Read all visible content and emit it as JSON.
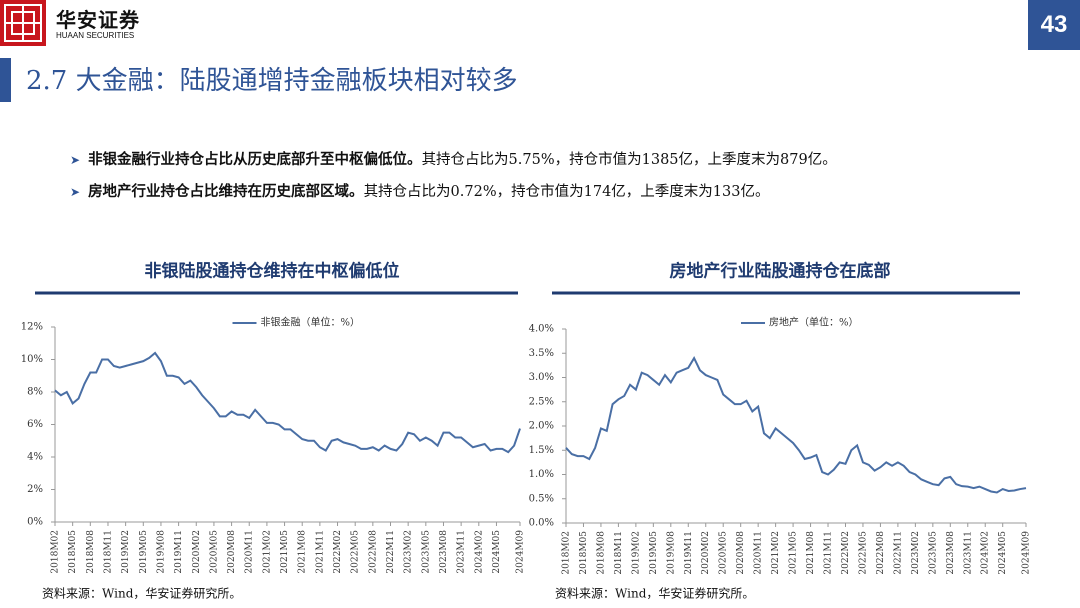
{
  "header": {
    "logo_cn": "华安证券",
    "logo_en": "HUAAN SECURITIES",
    "page_number": "43",
    "title": "2.7 大金融：陆股通增持金融板块相对较多"
  },
  "bullets": [
    {
      "bold": "非银金融行业持仓占比从历史底部升至中枢偏低位。",
      "text": "其持仓占比为5.75%，持仓市值为1385亿，上季度末为879亿。"
    },
    {
      "bold": "房地产行业持仓占比维持在历史底部区域。",
      "text": "其持仓占比为0.72%，持仓市值为174亿，上季度末为133亿。"
    }
  ],
  "chart_data": [
    {
      "type": "line",
      "title": "非银陆股通持仓维持在中枢偏低位",
      "source": "资料来源：Wind，华安证券研究所。",
      "categories": [
        "2018M02",
        null,
        null,
        "2018M05",
        null,
        null,
        "2018M08",
        null,
        null,
        "2018M11",
        null,
        null,
        "2019M02",
        null,
        null,
        "2019M05",
        null,
        null,
        "2019M08",
        null,
        null,
        "2019M11",
        null,
        null,
        "2020M02",
        null,
        null,
        "2020M05",
        null,
        null,
        "2020M08",
        null,
        null,
        "2020M11",
        null,
        null,
        "2021M02",
        null,
        null,
        "2021M05",
        null,
        null,
        "2021M08",
        null,
        null,
        "2021M11",
        null,
        null,
        "2022M02",
        null,
        null,
        "2022M05",
        null,
        null,
        "2022M08",
        null,
        null,
        "2022M11",
        null,
        null,
        "2023M02",
        null,
        null,
        "2023M05",
        null,
        null,
        "2023M08",
        null,
        null,
        "2023M11",
        null,
        null,
        "2024M02",
        null,
        null,
        "2024M05",
        null,
        null,
        null,
        "2024M09"
      ],
      "series": [
        {
          "name": "非银金融（单位：%）",
          "color": "#4a6fa5",
          "values": [
            8.1,
            7.8,
            8.0,
            7.3,
            7.6,
            8.5,
            9.2,
            9.2,
            10.0,
            10.0,
            9.6,
            9.5,
            9.6,
            9.7,
            9.8,
            9.9,
            10.1,
            10.4,
            9.9,
            9.0,
            9.0,
            8.9,
            8.5,
            8.7,
            8.3,
            7.8,
            7.4,
            7.0,
            6.5,
            6.5,
            6.8,
            6.6,
            6.6,
            6.4,
            6.9,
            6.5,
            6.1,
            6.1,
            6.0,
            5.7,
            5.7,
            5.4,
            5.1,
            5.0,
            5.0,
            4.6,
            4.4,
            5.0,
            5.1,
            4.9,
            4.8,
            4.7,
            4.5,
            4.5,
            4.6,
            4.4,
            4.7,
            4.5,
            4.4,
            4.8,
            5.5,
            5.4,
            5.0,
            5.2,
            5.0,
            4.7,
            5.5,
            5.5,
            5.2,
            5.2,
            4.9,
            4.6,
            4.7,
            4.8,
            4.4,
            4.5,
            4.5,
            4.3,
            4.7,
            5.75
          ]
        }
      ],
      "ylim": [
        0,
        12
      ],
      "yticks": [
        {
          "value": 0,
          "label": "0%"
        },
        {
          "value": 2,
          "label": "2%"
        },
        {
          "value": 4,
          "label": "4%"
        },
        {
          "value": 6,
          "label": "6%"
        },
        {
          "value": 8,
          "label": "8%"
        },
        {
          "value": 10,
          "label": "10%"
        },
        {
          "value": 12,
          "label": "12%"
        }
      ],
      "grid": false
    },
    {
      "type": "line",
      "title": "房地产行业陆股通持仓在底部",
      "source": "资料来源：Wind，华安证券研究所。",
      "categories": [
        "2018M02",
        null,
        null,
        "2018M05",
        null,
        null,
        "2018M08",
        null,
        null,
        "2018M11",
        null,
        null,
        "2019M02",
        null,
        null,
        "2019M05",
        null,
        null,
        "2019M08",
        null,
        null,
        "2019M11",
        null,
        null,
        "2020M02",
        null,
        null,
        "2020M05",
        null,
        null,
        "2020M08",
        null,
        null,
        "2020M11",
        null,
        null,
        "2021M02",
        null,
        null,
        "2021M05",
        null,
        null,
        "2021M08",
        null,
        null,
        "2021M11",
        null,
        null,
        "2022M02",
        null,
        null,
        "2022M05",
        null,
        null,
        "2022M08",
        null,
        null,
        "2022M11",
        null,
        null,
        "2023M02",
        null,
        null,
        "2023M05",
        null,
        null,
        "2023M08",
        null,
        null,
        "2023M11",
        null,
        null,
        "2024M02",
        null,
        null,
        "2024M05",
        null,
        null,
        null,
        "2024M09"
      ],
      "series": [
        {
          "name": "房地产（单位：%）",
          "color": "#4a6fa5",
          "values": [
            1.55,
            1.42,
            1.38,
            1.38,
            1.32,
            1.55,
            1.95,
            1.9,
            2.45,
            2.55,
            2.62,
            2.85,
            2.75,
            3.1,
            3.05,
            2.95,
            2.85,
            3.05,
            2.9,
            3.1,
            3.15,
            3.2,
            3.4,
            3.15,
            3.05,
            3.0,
            2.95,
            2.65,
            2.55,
            2.45,
            2.45,
            2.52,
            2.3,
            2.4,
            1.85,
            1.75,
            1.95,
            1.85,
            1.75,
            1.65,
            1.5,
            1.32,
            1.35,
            1.4,
            1.05,
            1.0,
            1.1,
            1.25,
            1.22,
            1.5,
            1.6,
            1.25,
            1.2,
            1.08,
            1.15,
            1.25,
            1.18,
            1.25,
            1.18,
            1.05,
            1.0,
            0.9,
            0.85,
            0.8,
            0.78,
            0.92,
            0.95,
            0.8,
            0.76,
            0.75,
            0.72,
            0.75,
            0.7,
            0.65,
            0.63,
            0.7,
            0.66,
            0.67,
            0.7,
            0.72
          ]
        }
      ],
      "ylim": [
        0,
        4
      ],
      "yticks": [
        {
          "value": 0,
          "label": "0.0%"
        },
        {
          "value": 0.5,
          "label": "0.5%"
        },
        {
          "value": 1,
          "label": "1.0%"
        },
        {
          "value": 1.5,
          "label": "1.5%"
        },
        {
          "value": 2,
          "label": "2.0%"
        },
        {
          "value": 2.5,
          "label": "2.5%"
        },
        {
          "value": 3,
          "label": "3.0%"
        },
        {
          "value": 3.5,
          "label": "3.5%"
        },
        {
          "value": 4,
          "label": "4.0%"
        }
      ],
      "grid": false
    }
  ]
}
